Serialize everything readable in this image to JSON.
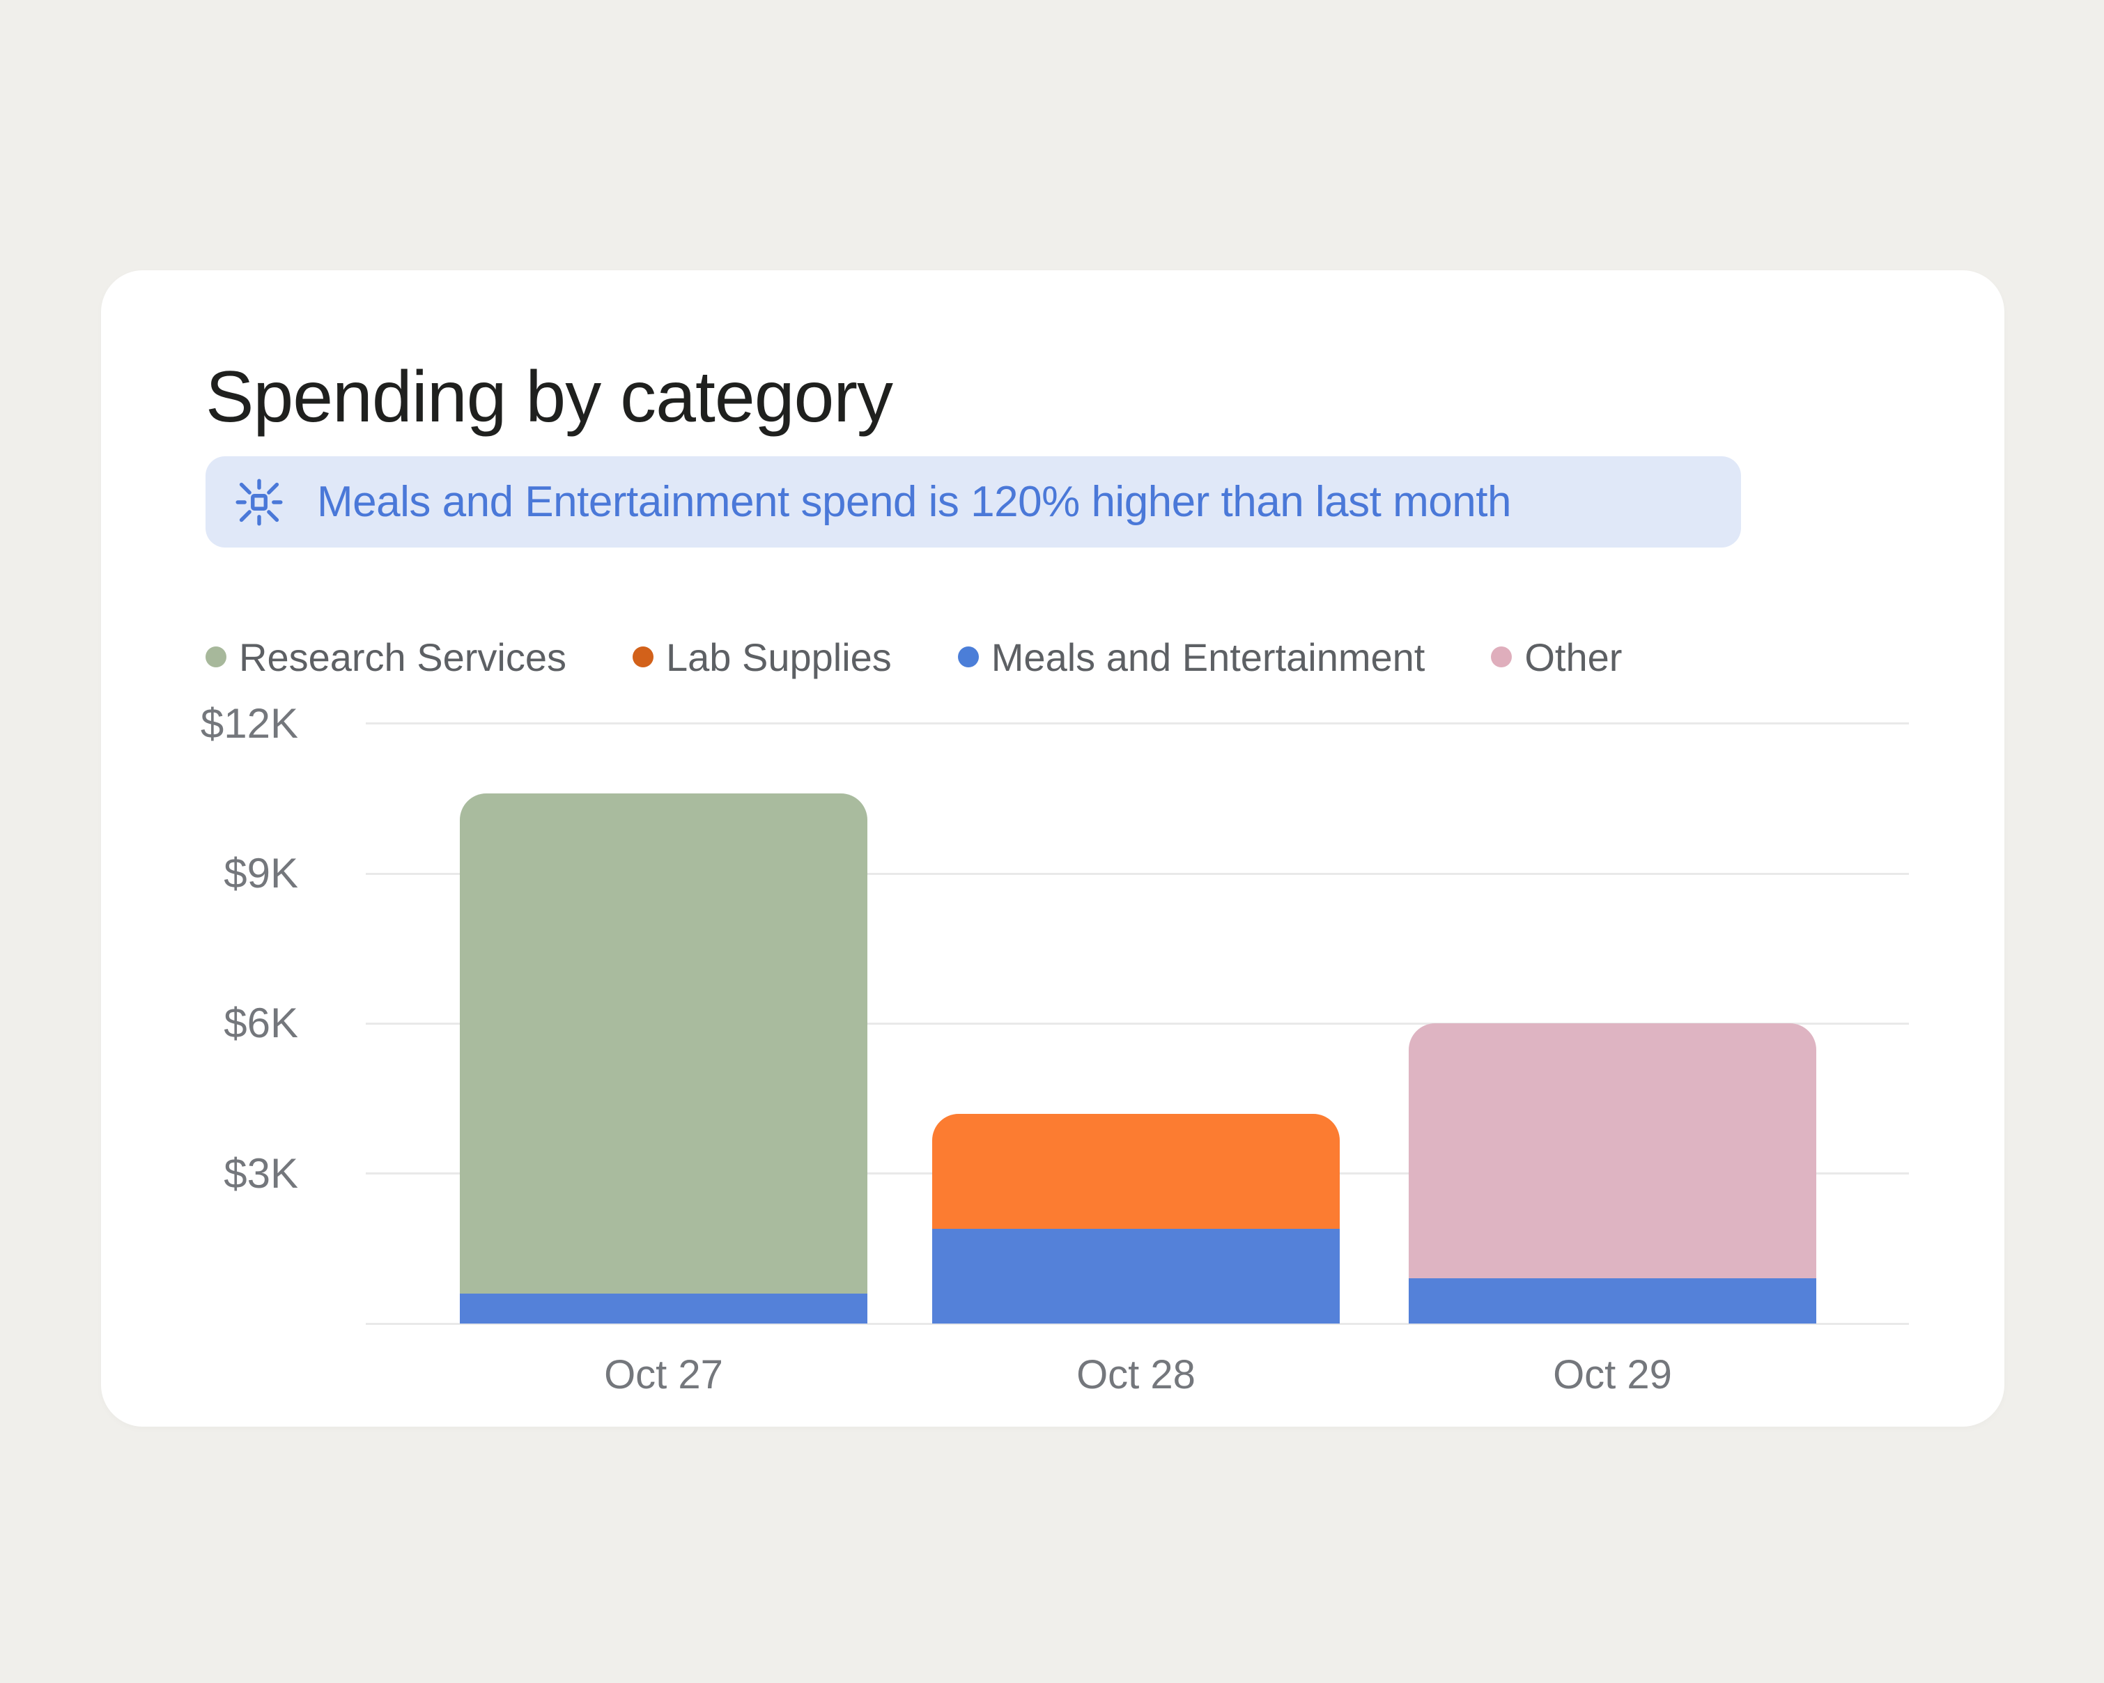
{
  "page": {
    "background": "#f0efeb"
  },
  "card": {
    "title": "Spending by category"
  },
  "insight": {
    "icon": "sparkle-burst-icon",
    "text": "Meals and Entertainment spend is 120% higher than last month",
    "background": "#e0e8f8",
    "text_color": "#4a78d8"
  },
  "chart_data": {
    "type": "bar",
    "stacked": true,
    "title": "Spending by category",
    "categories": [
      "Oct 27",
      "Oct 28",
      "Oct 29"
    ],
    "series": [
      {
        "name": "Research Services",
        "legend_color": "#a7b89b",
        "bar_color": "#a9bb9e",
        "values": [
          10000,
          0,
          0
        ]
      },
      {
        "name": "Lab Supplies",
        "legend_color": "#d2611a",
        "bar_color": "#fc7c31",
        "values": [
          0,
          2300,
          0
        ]
      },
      {
        "name": "Meals and Entertainment",
        "legend_color": "#4b7ed8",
        "bar_color": "#5481d9",
        "values": [
          600,
          1900,
          900
        ]
      },
      {
        "name": "Other",
        "legend_color": "#dfaebc",
        "bar_color": "#deb4c2",
        "values": [
          0,
          0,
          5100
        ]
      }
    ],
    "stack_order_bottom_to_top": [
      "Meals and Entertainment",
      "Research Services",
      "Lab Supplies",
      "Other"
    ],
    "totals": [
      10600,
      4200,
      6000
    ],
    "y_axis": {
      "unit": "USD",
      "max": 12000,
      "ticks": [
        {
          "label": "$12K",
          "value": 12000
        },
        {
          "label": "$9K",
          "value": 9000
        },
        {
          "label": "$6K",
          "value": 6000
        },
        {
          "label": "$3K",
          "value": 3000
        },
        {
          "label": "",
          "value": 0
        }
      ]
    },
    "x_labels": [
      "Oct 27",
      "Oct 28",
      "Oct 29"
    ],
    "grid": true,
    "legend_position": "top",
    "gridline_color": "#e9e9e9"
  }
}
